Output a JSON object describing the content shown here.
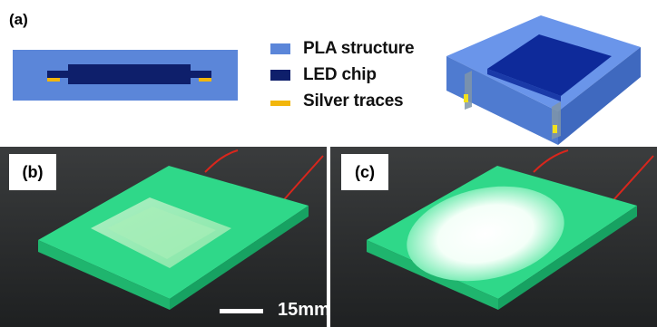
{
  "panels": {
    "a": "(a)",
    "b": "(b)",
    "c": "(c)"
  },
  "legend": [
    {
      "label": "PLA structure",
      "color": "#5b86d9"
    },
    {
      "label": "LED chip",
      "color": "#0e1f6b"
    },
    {
      "label": "Silver traces",
      "color": "#f2b60c"
    }
  ],
  "scale_bar": {
    "label": "15mm"
  },
  "colors": {
    "pla": "#5b86d9",
    "led": "#0e1f6b",
    "silver": "#f2b60c",
    "photo_bg": "#2a2c2e",
    "green_print": "#2fd889",
    "wire": "#d9261c"
  }
}
